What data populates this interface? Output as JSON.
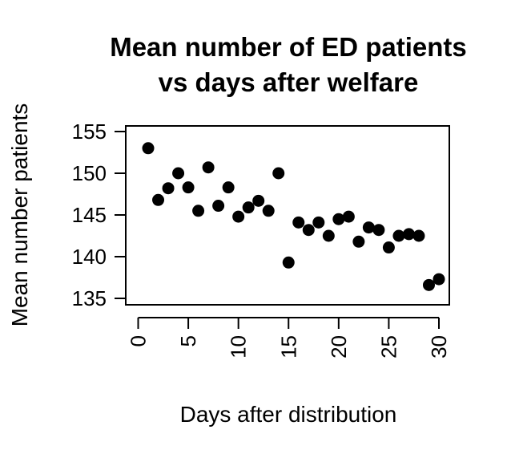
{
  "chart_data": {
    "type": "scatter",
    "title_lines": [
      "Mean number of ED patients",
      "vs days after welfare"
    ],
    "xlabel": "Days after distribution",
    "ylabel": "Mean number patients",
    "xlim": [
      0,
      30
    ],
    "ylim": [
      135,
      155
    ],
    "x_ticks": [
      0,
      5,
      10,
      15,
      20,
      25,
      30
    ],
    "y_ticks": [
      135,
      140,
      145,
      150,
      155
    ],
    "x_tick_labels": [
      "0",
      "5",
      "10",
      "15",
      "20",
      "25",
      "30"
    ],
    "y_tick_labels": [
      "135",
      "140",
      "145",
      "150",
      "155"
    ],
    "grid": false,
    "marker_color": "#000000",
    "points": [
      {
        "x": 1,
        "y": 153.0
      },
      {
        "x": 2,
        "y": 146.8
      },
      {
        "x": 3,
        "y": 148.2
      },
      {
        "x": 4,
        "y": 150.0
      },
      {
        "x": 5,
        "y": 148.3
      },
      {
        "x": 6,
        "y": 145.5
      },
      {
        "x": 7,
        "y": 150.7
      },
      {
        "x": 8,
        "y": 146.1
      },
      {
        "x": 9,
        "y": 148.3
      },
      {
        "x": 10,
        "y": 144.8
      },
      {
        "x": 11,
        "y": 145.9
      },
      {
        "x": 12,
        "y": 146.7
      },
      {
        "x": 13,
        "y": 145.5
      },
      {
        "x": 14,
        "y": 150.0
      },
      {
        "x": 15,
        "y": 139.3
      },
      {
        "x": 16,
        "y": 144.1
      },
      {
        "x": 17,
        "y": 143.2
      },
      {
        "x": 18,
        "y": 144.1
      },
      {
        "x": 19,
        "y": 142.5
      },
      {
        "x": 20,
        "y": 144.5
      },
      {
        "x": 21,
        "y": 144.8
      },
      {
        "x": 22,
        "y": 141.8
      },
      {
        "x": 23,
        "y": 143.5
      },
      {
        "x": 24,
        "y": 143.2
      },
      {
        "x": 25,
        "y": 141.1
      },
      {
        "x": 26,
        "y": 142.5
      },
      {
        "x": 27,
        "y": 142.7
      },
      {
        "x": 28,
        "y": 142.5
      },
      {
        "x": 29,
        "y": 136.6
      },
      {
        "x": 30,
        "y": 137.3
      }
    ]
  }
}
